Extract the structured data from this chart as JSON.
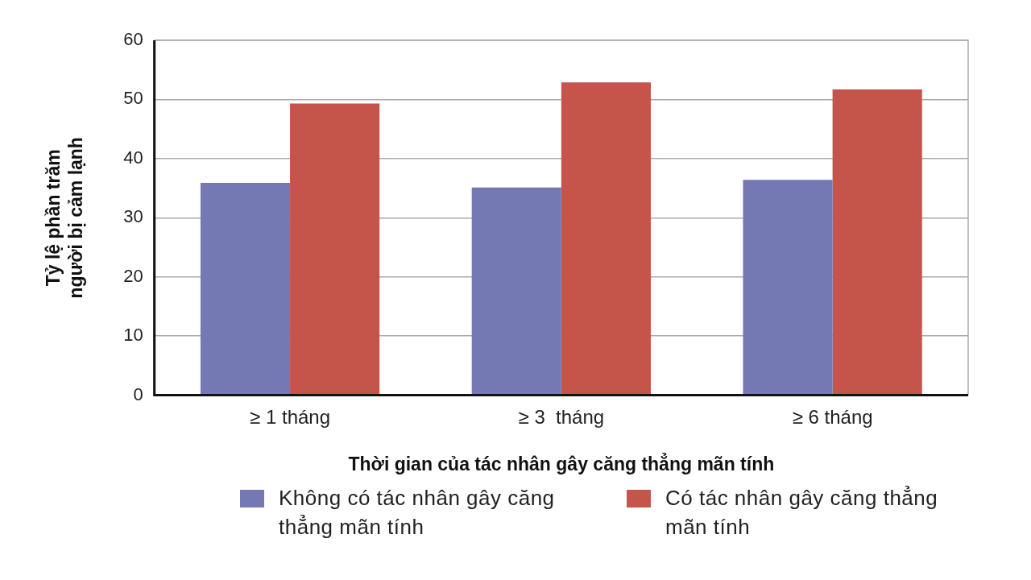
{
  "chart_data": {
    "type": "bar",
    "categories": [
      "≥ 1 tháng",
      "≥ 3  tháng",
      "≥ 6 tháng"
    ],
    "series": [
      {
        "name": "Không có tác nhân gây căng thẳng mãn tính",
        "color": "#7479b3",
        "values": [
          35.9,
          35.1,
          36.4
        ]
      },
      {
        "name": "Có tác nhân gây căng thẳng mãn tính",
        "color": "#c5554a",
        "values": [
          49.3,
          52.9,
          51.7
        ]
      }
    ],
    "xlabel": "Thời gian của tác nhân gây căng thẳng mãn tính",
    "ylabel": "Tỷ lệ phần trăm người bị cảm lạnh",
    "ylim": [
      0,
      60
    ],
    "yticks": [
      0,
      10,
      20,
      30,
      40,
      50,
      60
    ],
    "grid": "y",
    "legend": "bottom"
  }
}
